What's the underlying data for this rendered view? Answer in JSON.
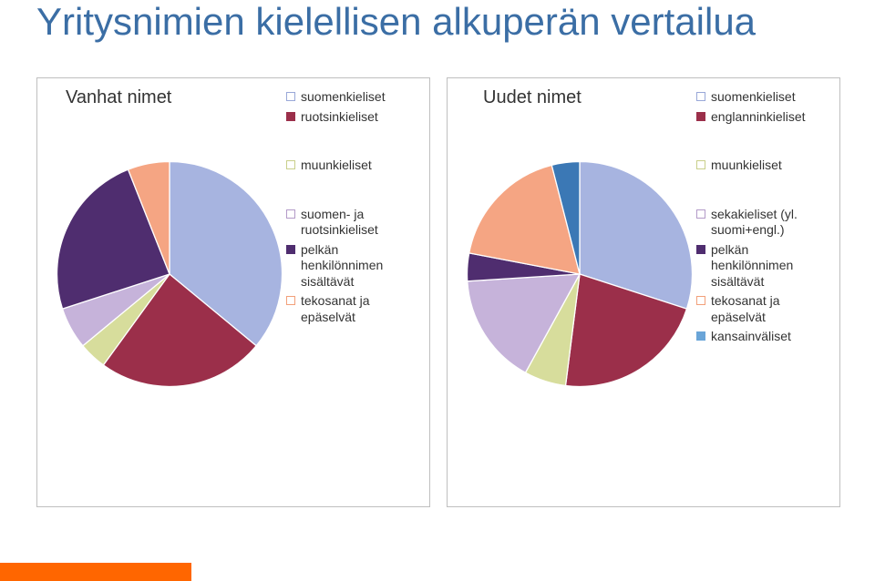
{
  "title": "Yritysnimien kielellisen alkuperän vertailua",
  "title_color": "#3b6ea5",
  "title_fontsize": 42,
  "accent_bar_color": "#ff6600",
  "accent_bar_width": 210,
  "left": {
    "header": "Vanhat nimet",
    "legend": [
      {
        "label": "suomenkieliset",
        "swatch_fill": "#ffffff",
        "swatch_border": "#99a8d8"
      },
      {
        "label": "ruotsinkieliset",
        "swatch_fill": "#9b2f4a",
        "swatch_border": "#9b2f4a"
      },
      {
        "label": "muunkieliset",
        "swatch_fill": "#ffffff",
        "swatch_border": "#c9cf8a"
      },
      {
        "label": "suomen- ja ruotsinkieliset",
        "swatch_fill": "#ffffff",
        "swatch_border": "#b39ac8"
      },
      {
        "label": "pelkän henkilönnimen sisältävät",
        "swatch_fill": "#4f2d6f",
        "swatch_border": "#4f2d6f"
      },
      {
        "label": "tekosanat ja epäselvät",
        "swatch_fill": "#ffffff",
        "swatch_border": "#f2a07a"
      }
    ],
    "pie": {
      "type": "pie",
      "start_angle_deg": 270,
      "stroke": "#ffffff",
      "stroke_width": 1,
      "slices": [
        {
          "label": "suomenkieliset",
          "value": 36,
          "color": "#a7b4e0"
        },
        {
          "label": "ruotsinkieliset",
          "value": 24,
          "color": "#9b2f4a"
        },
        {
          "label": "muunkieliset",
          "value": 4,
          "color": "#d7dd9c"
        },
        {
          "label": "suomen- ja ruotsinkieliset",
          "value": 6,
          "color": "#c6b3da"
        },
        {
          "label": "pelkän henkilönnimen sisältävät",
          "value": 24,
          "color": "#4f2d6f"
        },
        {
          "label": "tekosanat ja epäselvät",
          "value": 6,
          "color": "#f5a583"
        }
      ]
    }
  },
  "right": {
    "header": "Uudet nimet",
    "legend": [
      {
        "label": "suomenkieliset",
        "swatch_fill": "#ffffff",
        "swatch_border": "#99a8d8"
      },
      {
        "label": "englanninkieliset",
        "swatch_fill": "#9b2f4a",
        "swatch_border": "#9b2f4a"
      },
      {
        "label": "muunkieliset",
        "swatch_fill": "#ffffff",
        "swatch_border": "#c9cf8a"
      },
      {
        "label": "sekakieliset (yl. suomi+engl.)",
        "swatch_fill": "#ffffff",
        "swatch_border": "#b39ac8"
      },
      {
        "label": "pelkän henkilönnimen sisältävät",
        "swatch_fill": "#4f2d6f",
        "swatch_border": "#4f2d6f"
      },
      {
        "label": "tekosanat ja epäselvät",
        "swatch_fill": "#ffffff",
        "swatch_border": "#f2a07a"
      },
      {
        "label": "kansainväliset",
        "swatch_fill": "#6aa5d8",
        "swatch_border": "#6aa5d8"
      }
    ],
    "pie": {
      "type": "pie",
      "start_angle_deg": 270,
      "stroke": "#ffffff",
      "stroke_width": 1,
      "slices": [
        {
          "label": "suomenkieliset",
          "value": 30,
          "color": "#a7b4e0"
        },
        {
          "label": "englanninkieliset",
          "value": 22,
          "color": "#9b2f4a"
        },
        {
          "label": "muunkieliset",
          "value": 6,
          "color": "#d7dd9c"
        },
        {
          "label": "sekakieliset (yl. suomi+engl.)",
          "value": 16,
          "color": "#c6b3da"
        },
        {
          "label": "pelkän henkilönnimen sisältävät",
          "value": 4,
          "color": "#4f2d6f"
        },
        {
          "label": "tekosanat ja epäselvät",
          "value": 18,
          "color": "#f5a583"
        },
        {
          "label": "kansainväliset",
          "value": 4,
          "color": "#3b78b5"
        }
      ]
    }
  }
}
